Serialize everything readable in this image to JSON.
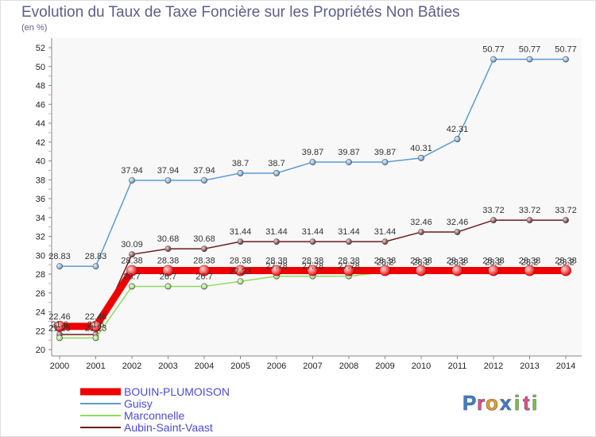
{
  "chart_data": {
    "type": "line",
    "title": "Evolution du Taux de Taxe Foncière sur les Propriétés Non Bâties",
    "subtitle": "(en %)",
    "x": [
      "2000",
      "2001",
      "2002",
      "2003",
      "2004",
      "2005",
      "2006",
      "2007",
      "2008",
      "2009",
      "2010",
      "2011",
      "2012",
      "2013",
      "2014"
    ],
    "ylim": [
      20,
      52
    ],
    "yticks": [
      20,
      22,
      24,
      26,
      28,
      30,
      32,
      34,
      36,
      38,
      40,
      42,
      44,
      46,
      48,
      50,
      52
    ],
    "series": [
      {
        "name": "Aubin-Saint-Vaast",
        "color": "#6b1a1a",
        "values": [
          21.6,
          21.6,
          30.09,
          30.68,
          30.68,
          31.44,
          31.44,
          31.44,
          31.44,
          31.44,
          32.46,
          32.46,
          33.72,
          33.72,
          33.72
        ],
        "labels": [
          "21.6",
          "21.6",
          "30.09",
          "30.68",
          "30.68",
          "31.44",
          "31.44",
          "31.44",
          "31.44",
          "31.44",
          "32.46",
          "32.46",
          "33.72",
          "33.72",
          "33.72"
        ]
      },
      {
        "name": "Guisy",
        "color": "#5b9bd5",
        "values": [
          28.83,
          28.83,
          37.94,
          37.94,
          37.94,
          38.7,
          38.7,
          39.87,
          39.87,
          39.87,
          40.31,
          42.31,
          50.77,
          50.77,
          50.77
        ],
        "labels": [
          "28.83",
          "28.83",
          "37.94",
          "37.94",
          "37.94",
          "38.7",
          "38.7",
          "39.87",
          "39.87",
          "39.87",
          "40.31",
          "42.31",
          "50.77",
          "50.77",
          "50.77"
        ]
      },
      {
        "name": "Marconnelle",
        "color": "#8fdc5a",
        "values": [
          21.23,
          21.23,
          26.7,
          26.7,
          26.7,
          27.23,
          27.78,
          27.78,
          27.78,
          28.2,
          28.2,
          28.2,
          28.2,
          28.2,
          28.2
        ],
        "labels": [
          "21.23",
          "21.23",
          "26.7",
          "26.7",
          "26.7",
          "27.23",
          "27.78",
          "27.78",
          "27.78",
          "28.2",
          "28.2",
          "28.2",
          "28.2",
          "28.2",
          "28.2"
        ]
      },
      {
        "name": "BOUIN-PLUMOISON",
        "color": "#ee0000",
        "values": [
          22.46,
          22.46,
          28.38,
          28.38,
          28.38,
          28.38,
          28.38,
          28.38,
          28.38,
          28.38,
          28.38,
          28.38,
          28.38,
          28.38,
          28.38
        ],
        "labels": [
          "22.46",
          "22.46",
          "28.38",
          "28.38",
          "28.38",
          "28.38",
          "28.38",
          "28.38",
          "28.38",
          "28.38",
          "28.38",
          "28.38",
          "28.38",
          "28.38",
          "28.38"
        ]
      }
    ],
    "legend_order": [
      "BOUIN-PLUMOISON",
      "Guisy",
      "Marconnelle",
      "Aubin-Saint-Vaast"
    ],
    "legend_position": "bottom-left",
    "grid": false
  },
  "brand": {
    "logo_letters": [
      "P",
      "r",
      "o",
      "x",
      "i",
      "t",
      "i"
    ],
    "logo_colors": [
      "#3a7fd0",
      "#e84f8a",
      "#f0a020",
      "#3a7fd0",
      "#7cc242",
      "#e84f8a",
      "#7cc242"
    ]
  }
}
